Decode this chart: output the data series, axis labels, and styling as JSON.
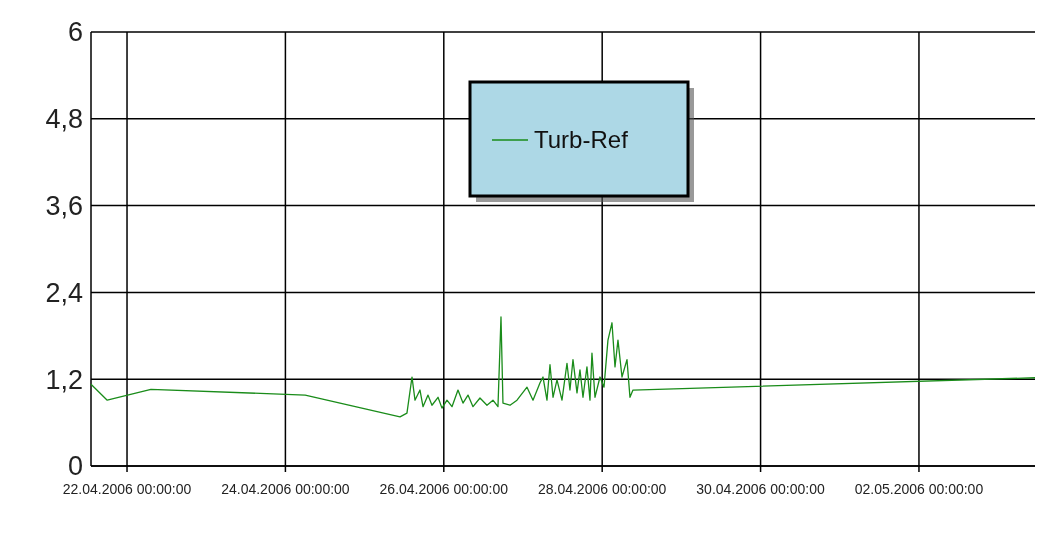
{
  "chart_data": {
    "type": "line",
    "legend": "top",
    "grid": true,
    "line_style": "solid",
    "xlim": [
      "2006-04-21T13:05",
      "2006-05-03T11:10"
    ],
    "xticks": [
      {
        "value": "2006-04-22T00:00",
        "label": "22.04.2006 00:00:00"
      },
      {
        "value": "2006-04-24T00:00",
        "label": "24.04.2006 00:00:00"
      },
      {
        "value": "2006-04-26T00:00",
        "label": "26.04.2006 00:00:00"
      },
      {
        "value": "2006-04-28T00:00",
        "label": "28.04.2006 00:00:00"
      },
      {
        "value": "2006-04-30T00:00",
        "label": "30.04.2006 00:00:00"
      },
      {
        "value": "2006-05-02T00:00",
        "label": "02.05.2006 00:00:00"
      }
    ],
    "ylim": [
      0,
      6
    ],
    "yticks": [
      0,
      {
        "value": 1.2,
        "label": "1,2"
      },
      {
        "value": 2.4,
        "label": "2,4"
      },
      {
        "value": 3.6,
        "label": "3,6"
      },
      {
        "value": 4.8,
        "label": "4,8"
      },
      6
    ],
    "x": [
      "2006-04-21T13:05",
      "2006-04-21T18:00",
      "2006-04-22T07:15",
      "2006-04-24T06:00",
      "2006-04-25T10:44",
      "2006-04-25T12:50",
      "2006-04-25T14:22",
      "2006-04-25T15:16",
      "2006-04-25T16:47",
      "2006-04-25T17:42",
      "2006-04-25T19:13",
      "2006-04-25T20:25",
      "2006-04-25T22:15",
      "2006-04-25T23:27",
      "2006-04-26T00:58",
      "2006-04-26T02:29",
      "2006-04-26T04:18",
      "2006-04-26T05:49",
      "2006-04-26T07:20",
      "2006-04-26T08:51",
      "2006-04-26T10:58",
      "2006-04-26T13:05",
      "2006-04-26T14:54",
      "2006-04-26T16:25",
      "2006-04-26T17:20",
      "2006-04-26T17:56",
      "2006-04-26T20:04",
      "2006-04-26T22:11",
      "2006-04-27T01:13",
      "2006-04-27T03:02",
      "2006-04-27T05:10",
      "2006-04-27T06:04",
      "2006-04-27T07:16",
      "2006-04-27T08:11",
      "2006-04-27T09:06",
      "2006-04-27T10:18",
      "2006-04-27T11:49",
      "2006-04-27T13:20",
      "2006-04-27T14:14",
      "2006-04-27T15:09",
      "2006-04-27T16:22",
      "2006-04-27T17:16",
      "2006-04-27T18:11",
      "2006-04-27T19:23",
      "2006-04-27T20:18",
      "2006-04-27T20:54",
      "2006-04-27T21:49",
      "2006-04-27T23:20",
      "2006-04-28T00:33",
      "2006-04-28T01:45",
      "2006-04-28T02:58",
      "2006-04-28T03:53",
      "2006-04-28T04:47",
      "2006-04-28T06:00",
      "2006-04-28T07:31",
      "2006-04-28T08:25",
      "2006-04-28T09:20",
      "2006-05-03T11:10"
    ],
    "series": [
      {
        "name": "Turb-Ref",
        "color": "#1a8c1a",
        "values": [
          1.13,
          0.91,
          1.06,
          0.98,
          0.68,
          0.73,
          1.23,
          0.91,
          1.05,
          0.82,
          0.98,
          0.84,
          0.95,
          0.8,
          0.91,
          0.82,
          1.05,
          0.87,
          0.98,
          0.82,
          0.94,
          0.84,
          0.91,
          0.82,
          2.06,
          0.87,
          0.84,
          0.91,
          1.09,
          0.91,
          1.15,
          1.23,
          0.91,
          1.4,
          0.95,
          1.19,
          0.91,
          1.42,
          1.05,
          1.47,
          1.01,
          1.33,
          0.95,
          1.37,
          0.91,
          1.56,
          0.95,
          1.23,
          1.09,
          1.74,
          1.98,
          1.37,
          1.74,
          1.23,
          1.47,
          0.95,
          1.05,
          1.22
        ]
      }
    ]
  }
}
